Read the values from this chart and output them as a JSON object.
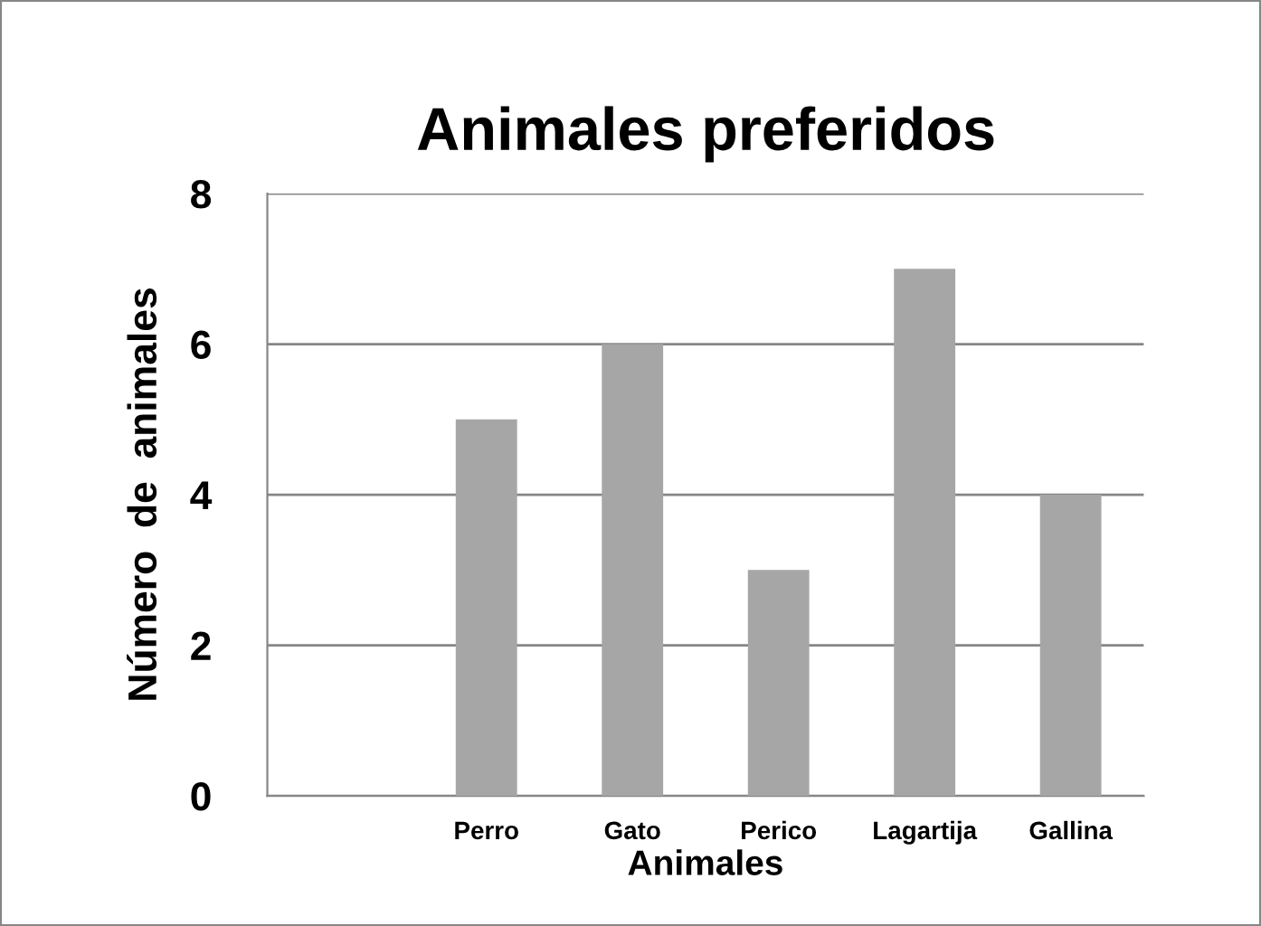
{
  "chart_data": {
    "type": "bar",
    "title": "Animales preferidos",
    "xlabel": "Animales",
    "ylabel": "Número  de  animales",
    "categories": [
      null,
      "Perro",
      "Gato",
      "Perico",
      "Lagartija",
      "Gallina"
    ],
    "values": [
      null,
      5,
      6,
      3,
      7,
      4
    ],
    "color": "#a6a6a6",
    "ylim": [
      0,
      8
    ],
    "yticks": [
      0,
      2,
      4,
      6,
      8
    ],
    "grid": "y",
    "legend": false
  }
}
